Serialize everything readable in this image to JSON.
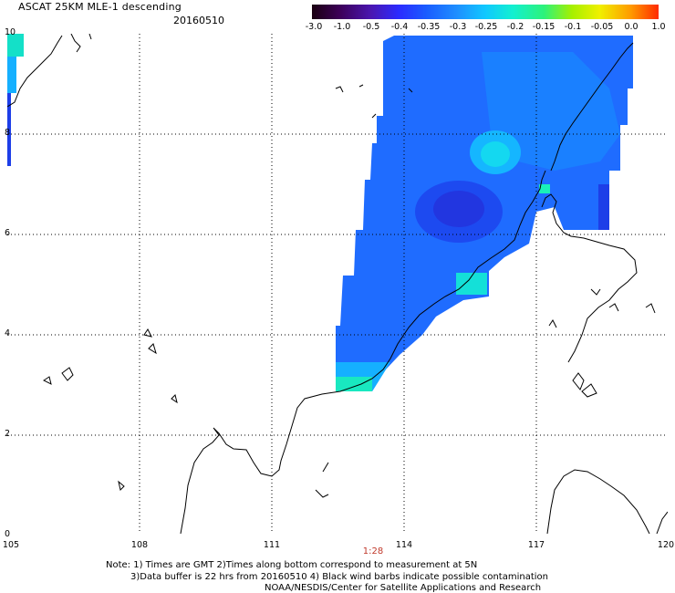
{
  "header": {
    "title": "ASCAT 25KM MLE-1 descending",
    "date": "20160510"
  },
  "colorbar": {
    "labels": [
      "-3.0",
      "-1.0",
      "-0.5",
      "-0.4",
      "-0.35",
      "-0.3",
      "-0.25",
      "-0.2",
      "-0.15",
      "-0.1",
      "-0.05",
      "0.0",
      "1.0"
    ],
    "colors": [
      "#1a0010",
      "#3c0058",
      "#4a16b0",
      "#2b2bff",
      "#1a5cff",
      "#1e90ff",
      "#10c8ff",
      "#12f0d0",
      "#2cf27a",
      "#a6f000",
      "#f0f000",
      "#ff9a00",
      "#ff2a00"
    ]
  },
  "map": {
    "lon_ticks": [
      "105",
      "108",
      "111",
      "114",
      "117",
      "120"
    ],
    "lat_ticks": [
      "0",
      "2",
      "4",
      "6",
      "8",
      "10"
    ],
    "time_label": "1:28",
    "swath_colors": {
      "main": "#1f6cff",
      "deep": "#1d3ee8",
      "light": "#15b0ff",
      "cyan": "#14e0e0",
      "teal": "#19f0b8"
    }
  },
  "footer": {
    "note1": "Note: 1) Times are GMT 2)Times along bottom correspond to measurement at 5N",
    "note2": "3)Data buffer is 22 hrs from 20160510 4) Black wind barbs indicate possible contamination",
    "note3": "NOAA/NESDIS/Center for Satellite Applications and Research"
  }
}
